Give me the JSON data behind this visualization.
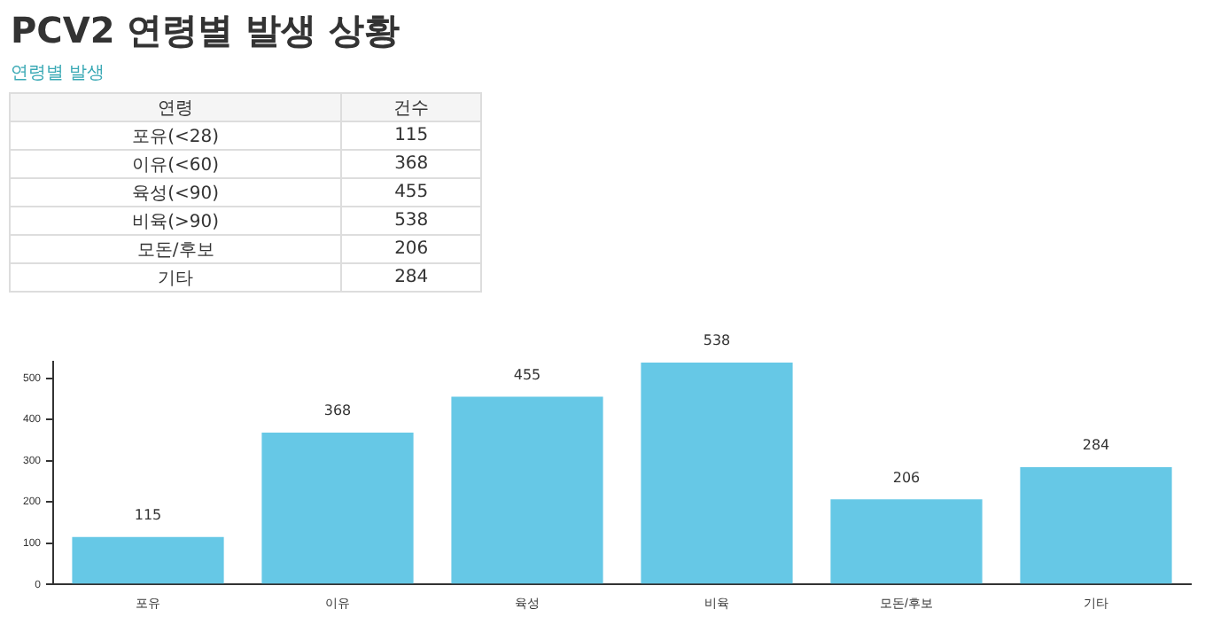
{
  "chart_data": {
    "type": "bar",
    "title": "PCV2 연령별 발생 상황",
    "subtitle": "연령별 발생",
    "annotations": [
      "연령",
      "건수",
      "포유(<28)",
      "115",
      "이유(<60)",
      "368",
      "육성(<90)",
      "455",
      "비육(>90)",
      "538",
      "모돈/후보",
      "206",
      "기타",
      "284"
    ],
    "categories": [
      "포유",
      "이유",
      "육성",
      "비육",
      "모돈/후보",
      "기타"
    ],
    "values": [
      115,
      368,
      455,
      538,
      206,
      284
    ],
    "color": "#66c8e6",
    "ylim": [
      0,
      540
    ],
    "yticks": [
      0,
      100,
      200,
      300,
      400,
      500
    ],
    "grid": false,
    "data_labels": true,
    "legend": false
  }
}
